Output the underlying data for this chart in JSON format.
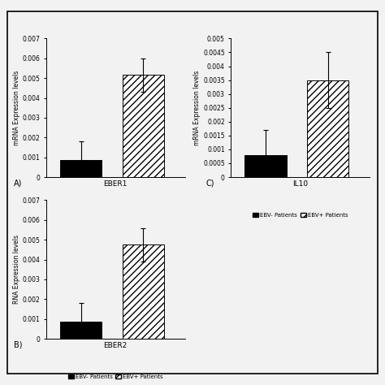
{
  "panel_A": {
    "title": "EBER1",
    "ylabel": "mRNA Expression levels",
    "ylim": [
      0,
      0.007
    ],
    "yticks": [
      0,
      0.001,
      0.002,
      0.003,
      0.004,
      0.005,
      0.006,
      0.007
    ],
    "ytick_labels": [
      "0",
      "0.001",
      "0.002",
      "0.003",
      "0.004",
      "0.005",
      "0.006",
      "0.007"
    ],
    "bars": [
      {
        "label": "EBV- Patients",
        "value": 0.00085,
        "error": 0.00095,
        "color": "black",
        "hatch": null
      },
      {
        "label": "EBV+ Patients",
        "value": 0.00515,
        "error": 0.00085,
        "color": "white",
        "hatch": "////"
      }
    ],
    "panel_label": "A)"
  },
  "panel_B": {
    "title": "EBER2",
    "ylabel": "RNA Expression levels",
    "ylim": [
      0,
      0.007
    ],
    "yticks": [
      0,
      0.001,
      0.002,
      0.003,
      0.004,
      0.005,
      0.006,
      0.007
    ],
    "ytick_labels": [
      "0",
      "0.001",
      "0.002",
      "0.003",
      "0.004",
      "0.005",
      "0.006",
      "0.007"
    ],
    "bars": [
      {
        "label": "EBV- Patients",
        "value": 0.00085,
        "error": 0.00095,
        "color": "black",
        "hatch": null
      },
      {
        "label": "EBV+ Patients",
        "value": 0.00475,
        "error": 0.00085,
        "color": "white",
        "hatch": "////"
      }
    ],
    "panel_label": "B)"
  },
  "panel_C": {
    "title": "IL10",
    "ylabel": "mRNA Expression levels",
    "ylim": [
      0,
      0.005
    ],
    "yticks": [
      0,
      0.0005,
      0.001,
      0.0015,
      0.002,
      0.0025,
      0.003,
      0.0035,
      0.004,
      0.0045,
      0.005
    ],
    "ytick_labels": [
      "0",
      "0.0005",
      "0.001",
      "0.0015",
      "0.002",
      "0.0025",
      "0.003",
      "0.0035",
      "0.004",
      "0.0045",
      "0.005"
    ],
    "bars": [
      {
        "label": "EBV- Patients",
        "value": 0.0008,
        "error": 0.0009,
        "color": "black",
        "hatch": null
      },
      {
        "label": "EBV+ Patients",
        "value": 0.0035,
        "error": 0.001,
        "color": "white",
        "hatch": "////"
      }
    ],
    "panel_label": "C)"
  },
  "bg_color": "#f2f2f2",
  "bar_width": 0.3,
  "fontsize_title": 6.5,
  "fontsize_tick": 5.5,
  "fontsize_ylabel": 5.5,
  "fontsize_legend": 5.0,
  "fontsize_panel_label": 7
}
